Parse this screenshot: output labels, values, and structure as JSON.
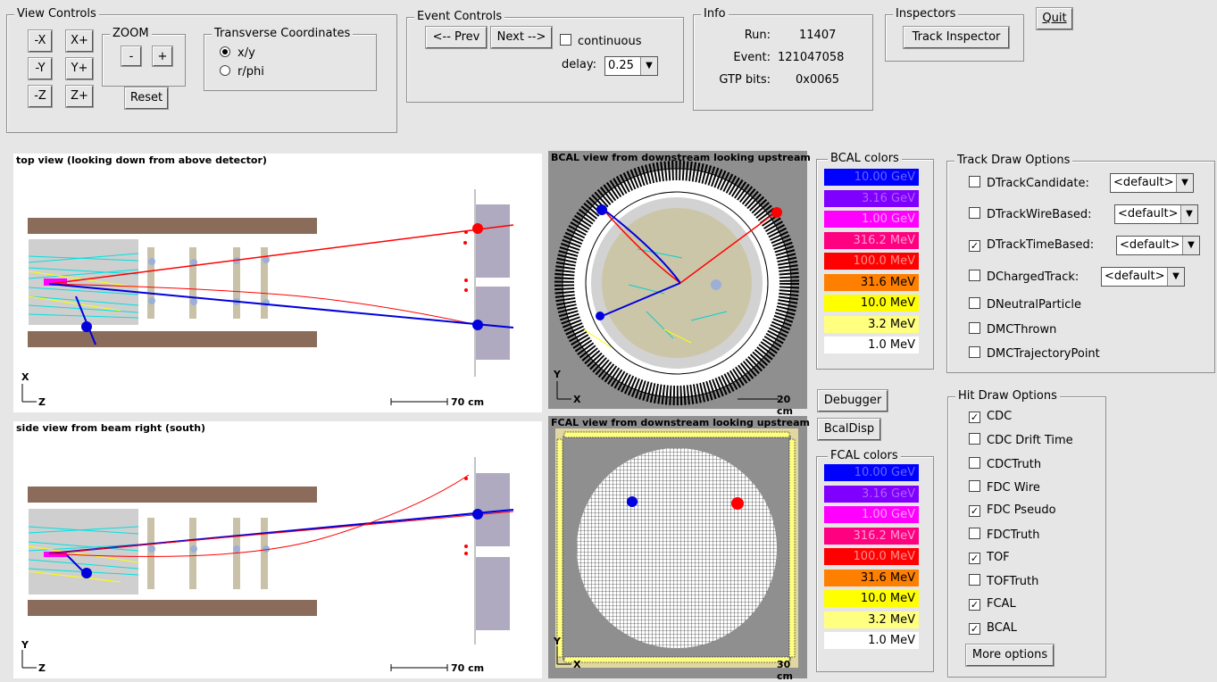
{
  "view_controls": {
    "title": "View Controls",
    "buttons": {
      "mx": "-X",
      "px": "X+",
      "my": "-Y",
      "py": "Y+",
      "mz": "-Z",
      "pz": "Z+"
    },
    "zoom": {
      "title": "ZOOM",
      "minus": "-",
      "plus": "+",
      "reset": "Reset"
    },
    "transverse": {
      "title": "Transverse Coordinates",
      "options": [
        "x/y",
        "r/phi"
      ],
      "selected": "x/y"
    }
  },
  "event_controls": {
    "title": "Event Controls",
    "prev": "<-- Prev",
    "next": "Next -->",
    "continuous": "continuous",
    "delay_label": "delay:",
    "delay_value": "0.25"
  },
  "info": {
    "title": "Info",
    "run_label": "Run:",
    "run": "11407",
    "event_label": "Event:",
    "event": "121047058",
    "gtp_label": "GTP bits:",
    "gtp": "0x0065"
  },
  "inspectors": {
    "title": "Inspectors",
    "track_inspector": "Track Inspector"
  },
  "quit": "Quit",
  "views": {
    "top": {
      "title": "top view (looking down from above detector)",
      "axis_v": "X",
      "axis_h": "Z",
      "scale": "70 cm"
    },
    "side": {
      "title": "side view from beam right (south)",
      "axis_v": "Y",
      "axis_h": "Z",
      "scale": "70 cm"
    },
    "bcal": {
      "title": "BCAL view from downstream looking upstream",
      "axis_v": "Y",
      "axis_h": "X",
      "scale": "20 cm"
    },
    "fcal": {
      "title": "FCAL view from downstream looking upstream",
      "axis_v": "Y",
      "axis_h": "X",
      "scale": "30 cm"
    }
  },
  "bcal_colors": {
    "title": "BCAL colors",
    "entries": [
      {
        "label": "10.00 GeV",
        "color": "#0000ff",
        "text": "#6666ff"
      },
      {
        "label": "3.16 GeV",
        "color": "#7f00ff",
        "text": "#b060ff"
      },
      {
        "label": "1.00 GeV",
        "color": "#ff00ff",
        "text": "#ffa0ff"
      },
      {
        "label": "316.2 MeV",
        "color": "#ff0080",
        "text": "#ff9fd0"
      },
      {
        "label": "100.0 MeV",
        "color": "#ff0000",
        "text": "#ff9090"
      },
      {
        "label": "31.6 MeV",
        "color": "#ff7f00",
        "text": "#000000"
      },
      {
        "label": "10.0 MeV",
        "color": "#ffff00",
        "text": "#000000"
      },
      {
        "label": "3.2 MeV",
        "color": "#ffff80",
        "text": "#000000"
      },
      {
        "label": "1.0 MeV",
        "color": "#ffffff",
        "text": "#000000"
      }
    ]
  },
  "fcal_colors": {
    "title": "FCAL colors",
    "entries": [
      {
        "label": "10.00 GeV",
        "color": "#0000ff",
        "text": "#6666ff"
      },
      {
        "label": "3.16 GeV",
        "color": "#7f00ff",
        "text": "#b060ff"
      },
      {
        "label": "1.00 GeV",
        "color": "#ff00ff",
        "text": "#ffa0ff"
      },
      {
        "label": "316.2 MeV",
        "color": "#ff0080",
        "text": "#ff9fd0"
      },
      {
        "label": "100.0 MeV",
        "color": "#ff0000",
        "text": "#ff9090"
      },
      {
        "label": "31.6 MeV",
        "color": "#ff7f00",
        "text": "#000000"
      },
      {
        "label": "10.0 MeV",
        "color": "#ffff00",
        "text": "#000000"
      },
      {
        "label": "3.2 MeV",
        "color": "#ffff80",
        "text": "#000000"
      },
      {
        "label": "1.0 MeV",
        "color": "#ffffff",
        "text": "#000000"
      }
    ]
  },
  "debugger": "Debugger",
  "bcaldisp": "BcalDisp",
  "track_draw": {
    "title": "Track Draw Options",
    "items": [
      {
        "label": "DTrackCandidate:",
        "checked": false,
        "combo": "<default>"
      },
      {
        "label": "DTrackWireBased:",
        "checked": false,
        "combo": "<default>"
      },
      {
        "label": "DTrackTimeBased:",
        "checked": true,
        "combo": "<default>"
      },
      {
        "label": "DChargedTrack:",
        "checked": false,
        "combo": "<default>"
      },
      {
        "label": "DNeutralParticle",
        "checked": false
      },
      {
        "label": "DMCThrown",
        "checked": false
      },
      {
        "label": "DMCTrajectoryPoint",
        "checked": false
      }
    ]
  },
  "hit_draw": {
    "title": "Hit Draw Options",
    "items": [
      {
        "label": "CDC",
        "checked": true
      },
      {
        "label": "CDC Drift Time",
        "checked": false
      },
      {
        "label": "CDCTruth",
        "checked": false
      },
      {
        "label": "FDC Wire",
        "checked": false
      },
      {
        "label": "FDC Pseudo",
        "checked": true
      },
      {
        "label": "FDCTruth",
        "checked": false
      },
      {
        "label": "TOF",
        "checked": true
      },
      {
        "label": "TOFTruth",
        "checked": false
      },
      {
        "label": "FCAL",
        "checked": true
      },
      {
        "label": "BCAL",
        "checked": true
      }
    ],
    "more": "More options"
  }
}
